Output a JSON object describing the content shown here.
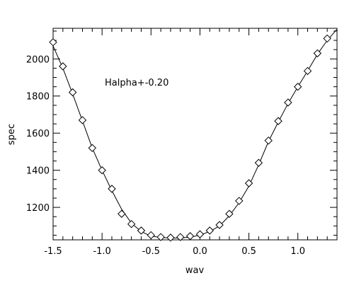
{
  "chart_data": {
    "type": "line",
    "annotation": "Halpha+-0.20",
    "xlabel": "wav",
    "ylabel": "spec",
    "xlim": [
      -1.5,
      1.4
    ],
    "ylim": [
      1025,
      2165
    ],
    "xticks": [
      -1.5,
      -1.0,
      -0.5,
      0.0,
      0.5,
      1.0
    ],
    "xtick_labels": [
      "-1.5",
      "-1.0",
      "-0.5",
      "0.0",
      "0.5",
      "1.0"
    ],
    "yticks": [
      1200,
      1400,
      1600,
      1800,
      2000
    ],
    "ytick_labels": [
      "1200",
      "1400",
      "1600",
      "1800",
      "2000"
    ],
    "grid": false,
    "line": {
      "x": [
        -1.5,
        -1.4,
        -1.3,
        -1.2,
        -1.1,
        -1.0,
        -0.9,
        -0.8,
        -0.7,
        -0.6,
        -0.5,
        -0.4,
        -0.3,
        -0.2,
        -0.1,
        0.0,
        0.1,
        0.2,
        0.3,
        0.4,
        0.5,
        0.6,
        0.7,
        0.8,
        0.9,
        1.0,
        1.1,
        1.2,
        1.3,
        1.4
      ],
      "y": [
        2070,
        1950,
        1810,
        1665,
        1520,
        1400,
        1290,
        1190,
        1115,
        1070,
        1045,
        1038,
        1035,
        1035,
        1040,
        1050,
        1070,
        1100,
        1155,
        1225,
        1315,
        1430,
        1555,
        1660,
        1760,
        1850,
        1935,
        2025,
        2100,
        2160
      ]
    },
    "markers": {
      "symbol": "diamond",
      "x": [
        -1.5,
        -1.4,
        -1.3,
        -1.2,
        -1.1,
        -1.0,
        -0.9,
        -0.8,
        -0.7,
        -0.6,
        -0.5,
        -0.4,
        -0.3,
        -0.2,
        -0.1,
        0.0,
        0.1,
        0.2,
        0.3,
        0.4,
        0.5,
        0.6,
        0.7,
        0.8,
        0.9,
        1.0,
        1.1,
        1.2,
        1.3
      ],
      "y": [
        2090,
        1960,
        1820,
        1670,
        1520,
        1400,
        1300,
        1165,
        1110,
        1075,
        1050,
        1040,
        1037,
        1040,
        1045,
        1055,
        1075,
        1105,
        1165,
        1235,
        1330,
        1440,
        1560,
        1665,
        1765,
        1850,
        1935,
        2030,
        2110
      ]
    },
    "colors": {
      "line": "#000000",
      "marker": "#000000",
      "background": "#ffffff"
    }
  }
}
